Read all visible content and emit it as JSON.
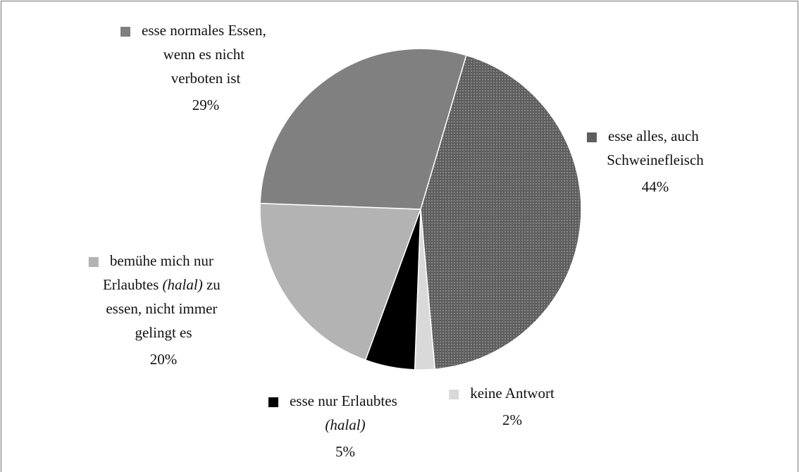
{
  "chart_data": {
    "type": "pie",
    "categories": [
      "esse alles, auch Schweinefleisch",
      "keine Antwort",
      "esse nur Erlaubtes (halal)",
      "bemühe mich nur Erlaubtes (halal) zu essen, nicht immer gelingt es",
      "esse normales Essen, wenn es nicht verboten ist"
    ],
    "values": [
      44,
      2,
      5,
      20,
      29
    ],
    "value_labels": [
      "44%",
      "2%",
      "5%",
      "20%",
      "29%"
    ],
    "colors": [
      "#5e5e5e",
      "#d9d9d9",
      "#000000",
      "#b3b3b3",
      "#808080"
    ]
  }
}
